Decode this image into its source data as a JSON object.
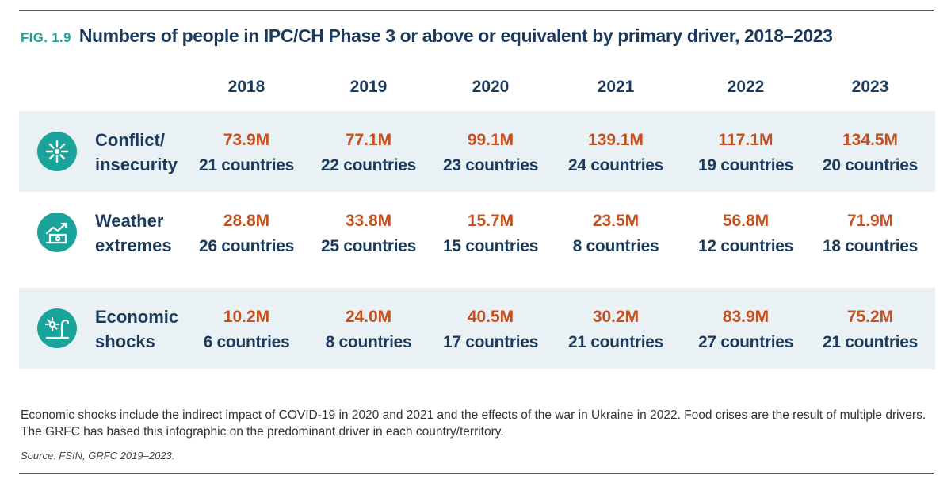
{
  "header": {
    "fig_label": "FIG. 1.9",
    "title": "Numbers of people in IPC/CH Phase 3 or above or equivalent by primary driver, 2018–2023"
  },
  "chart_data": {
    "type": "table",
    "title": "Numbers of people in IPC/CH Phase 3 or above or equivalent by primary driver, 2018–2023",
    "columns": [
      "2018",
      "2019",
      "2020",
      "2021",
      "2022",
      "2023"
    ],
    "rows": [
      {
        "driver_line1": "Conflict/",
        "driver_line2": "insecurity",
        "icon": "conflict-burst-icon",
        "people": [
          "73.9M",
          "77.1M",
          "99.1M",
          "139.1M",
          "117.1M",
          "134.5M"
        ],
        "people_millions": [
          73.9,
          77.1,
          99.1,
          139.1,
          117.1,
          134.5
        ],
        "countries": [
          "21 countries",
          "22 countries",
          "23 countries",
          "24 countries",
          "19 countries",
          "20 countries"
        ]
      },
      {
        "driver_line1": "Weather",
        "driver_line2": "extremes",
        "icon": "weather-flood-icon",
        "people": [
          "28.8M",
          "33.8M",
          "15.7M",
          "23.5M",
          "56.8M",
          "71.9M"
        ],
        "people_millions": [
          28.8,
          33.8,
          15.7,
          23.5,
          56.8,
          71.9
        ],
        "countries": [
          "26 countries",
          "25 countries",
          "15 countries",
          "8 countries",
          "12 countries",
          "18 countries"
        ]
      },
      {
        "driver_line1": "Economic",
        "driver_line2": "shocks",
        "icon": "economic-shock-icon",
        "people": [
          "10.2M",
          "24.0M",
          "40.5M",
          "30.2M",
          "83.9M",
          "75.2M"
        ],
        "people_millions": [
          10.2,
          24.0,
          40.5,
          30.2,
          83.9,
          75.2
        ],
        "countries": [
          "6 countries",
          "8 countries",
          "17 countries",
          "21 countries",
          "27 countries",
          "21 countries"
        ]
      }
    ]
  },
  "footnote": {
    "note": "Economic shocks include the indirect impact of COVID-19 in 2020 and 2021 and the effects of the war in Ukraine in 2022. Food crises are the result of multiple drivers. The GRFC has based this infographic on the predominant driver in each country/territory.",
    "source": "Source: FSIN, GRFC 2019–2023."
  },
  "colors": {
    "accent_teal": "#1aa39a",
    "navy": "#1b3a5c",
    "value_orange": "#c4501f",
    "band_bg": "#e9f1f4",
    "rule": "#1f6b82"
  }
}
